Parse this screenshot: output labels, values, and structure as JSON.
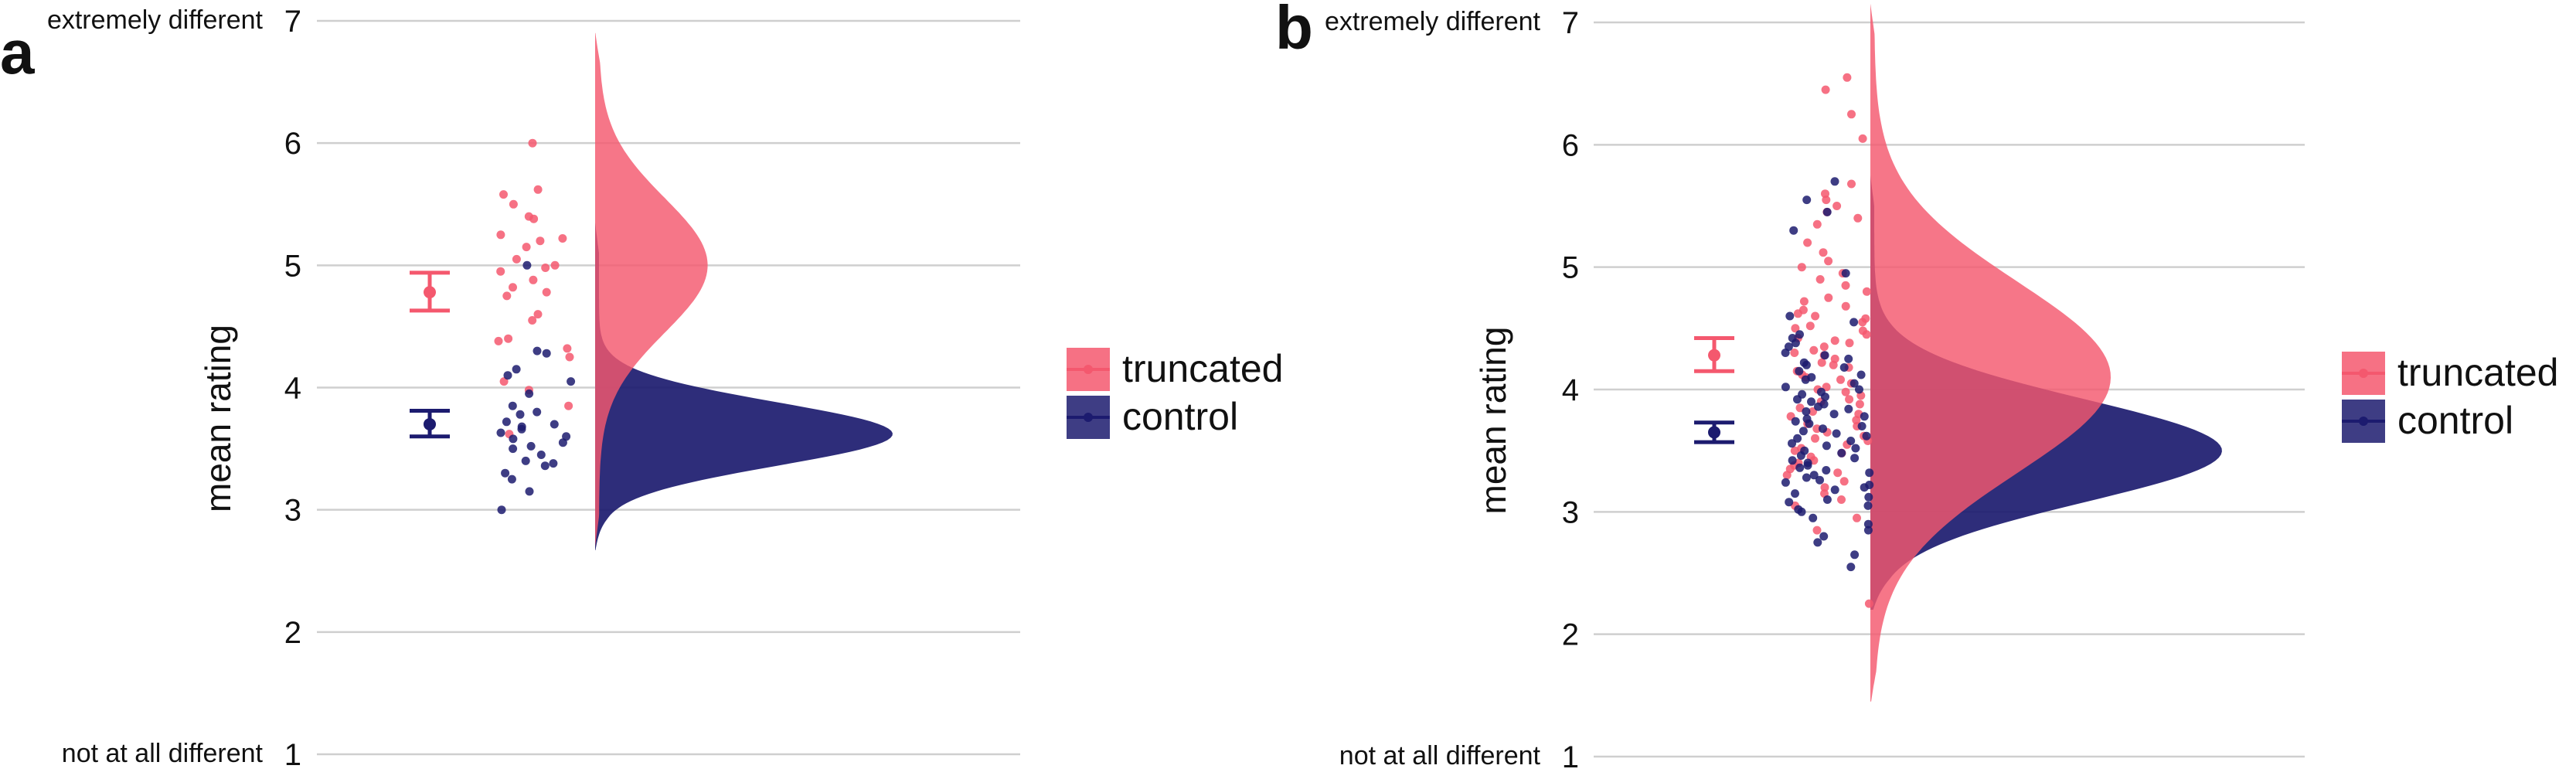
{
  "colors": {
    "truncated": "#f4586e",
    "control": "#1c1b6f",
    "grid": "#cfcfcf",
    "text": "#111111"
  },
  "chart_data": [
    {
      "panel_label": "a",
      "type": "scatter",
      "ylabel": "mean rating",
      "ylim": [
        1,
        7
      ],
      "yticks": [
        "1",
        "2",
        "3",
        "4",
        "5",
        "6",
        "7"
      ],
      "ytick_annotations": {
        "top": "extremely different",
        "bottom": "not at all different"
      },
      "grid": true,
      "legend": {
        "placement": "right",
        "entries": [
          "truncated",
          "control"
        ]
      },
      "summary": [
        {
          "series": "truncated",
          "mean": 4.78,
          "ci": [
            4.63,
            4.94
          ]
        },
        {
          "series": "control",
          "mean": 3.7,
          "ci": [
            3.6,
            3.81
          ]
        }
      ],
      "distributions": [
        {
          "series": "truncated",
          "peak": 5.0,
          "sd": 0.55,
          "height": 0.37,
          "min": 2.7,
          "max": 6.9
        },
        {
          "series": "control",
          "peak": 3.62,
          "sd": 0.26,
          "height": 1.0,
          "min": 2.67,
          "max": 5.35
        }
      ],
      "points": {
        "truncated": [
          6.0,
          5.62,
          5.58,
          5.5,
          5.4,
          5.38,
          5.25,
          5.22,
          5.2,
          5.15,
          5.05,
          5.0,
          4.98,
          4.95,
          4.88,
          4.82,
          4.78,
          4.75,
          4.6,
          4.55,
          4.4,
          4.38,
          4.32,
          4.25,
          4.05,
          3.98,
          3.85,
          3.62
        ],
        "control": [
          5.0,
          4.3,
          4.28,
          4.15,
          4.1,
          4.05,
          3.95,
          3.85,
          3.8,
          3.78,
          3.72,
          3.7,
          3.68,
          3.66,
          3.63,
          3.6,
          3.58,
          3.55,
          3.52,
          3.5,
          3.45,
          3.4,
          3.38,
          3.36,
          3.3,
          3.25,
          3.15,
          3.0
        ]
      }
    },
    {
      "panel_label": "b",
      "type": "scatter",
      "ylabel": "mean rating",
      "ylim": [
        1,
        7
      ],
      "yticks": [
        "1",
        "2",
        "3",
        "4",
        "5",
        "6",
        "7"
      ],
      "ytick_annotations": {
        "top": "extremely different",
        "bottom": "not at all different"
      },
      "grid": true,
      "legend": {
        "placement": "right",
        "entries": [
          "truncated",
          "control"
        ]
      },
      "summary": [
        {
          "series": "truncated",
          "mean": 4.28,
          "ci": [
            4.15,
            4.42
          ]
        },
        {
          "series": "control",
          "mean": 3.65,
          "ci": [
            3.57,
            3.73
          ]
        }
      ],
      "distributions": [
        {
          "series": "truncated",
          "peak": 4.1,
          "sd": 0.78,
          "height": 0.68,
          "min": 1.45,
          "max": 7.15
        },
        {
          "series": "control",
          "peak": 3.5,
          "sd": 0.42,
          "height": 1.0,
          "min": 2.2,
          "max": 5.75
        }
      ],
      "points": {
        "truncated": [
          6.55,
          6.45,
          6.25,
          6.05,
          5.68,
          5.6,
          5.55,
          5.5,
          5.45,
          5.4,
          5.35,
          5.2,
          5.12,
          5.05,
          5.0,
          4.95,
          4.9,
          4.85,
          4.8,
          4.75,
          4.72,
          4.68,
          4.65,
          4.62,
          4.6,
          4.58,
          4.55,
          4.52,
          4.5,
          4.48,
          4.45,
          4.42,
          4.4,
          4.38,
          4.35,
          4.32,
          4.3,
          4.28,
          4.25,
          4.22,
          4.2,
          4.18,
          4.15,
          4.12,
          4.1,
          4.08,
          4.05,
          4.02,
          4.0,
          3.98,
          3.95,
          3.92,
          3.9,
          3.88,
          3.85,
          3.82,
          3.8,
          3.78,
          3.75,
          3.72,
          3.7,
          3.68,
          3.65,
          3.62,
          3.6,
          3.58,
          3.55,
          3.52,
          3.5,
          3.48,
          3.45,
          3.42,
          3.4,
          3.38,
          3.35,
          3.32,
          3.3,
          3.25,
          3.2,
          3.15,
          3.1,
          3.05,
          2.95,
          2.85,
          2.25
        ],
        "control": [
          5.7,
          5.55,
          5.45,
          5.3,
          4.95,
          4.6,
          4.55,
          4.45,
          4.42,
          4.38,
          4.35,
          4.3,
          4.28,
          4.25,
          4.22,
          4.2,
          4.18,
          4.15,
          4.12,
          4.1,
          4.08,
          4.05,
          4.02,
          4.0,
          3.98,
          3.96,
          3.94,
          3.92,
          3.9,
          3.88,
          3.86,
          3.84,
          3.82,
          3.8,
          3.78,
          3.76,
          3.74,
          3.72,
          3.7,
          3.68,
          3.66,
          3.64,
          3.62,
          3.6,
          3.58,
          3.56,
          3.54,
          3.52,
          3.5,
          3.48,
          3.46,
          3.44,
          3.42,
          3.4,
          3.38,
          3.36,
          3.34,
          3.32,
          3.3,
          3.28,
          3.26,
          3.24,
          3.22,
          3.2,
          3.18,
          3.15,
          3.12,
          3.1,
          3.08,
          3.05,
          3.02,
          3.0,
          2.95,
          2.9,
          2.85,
          2.8,
          2.75,
          2.65,
          2.55
        ]
      }
    }
  ]
}
